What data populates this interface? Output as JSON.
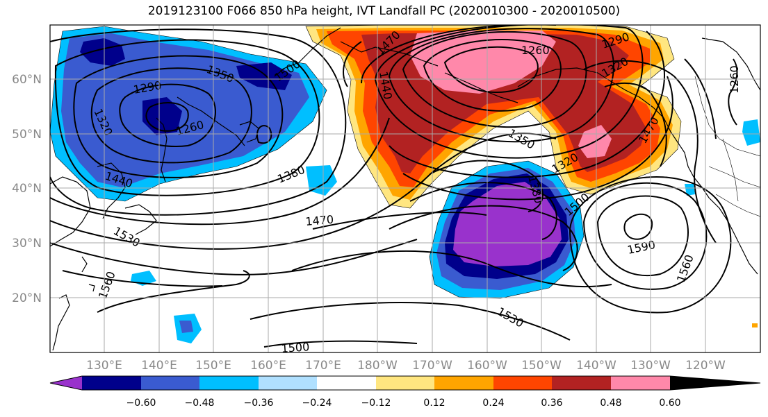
{
  "title": "2019123100 F066 850 hPa height, IVT Landfall PC (2020010300 - 2020010500)",
  "lat_labels": [
    "60°N",
    "50°N",
    "40°N",
    "30°N",
    "20°N"
  ],
  "lon_labels": [
    "130°E",
    "140°E",
    "150°E",
    "160°E",
    "170°E",
    "180°W",
    "170°W",
    "160°W",
    "150°W",
    "140°W",
    "130°W",
    "120°W"
  ],
  "colorbar": {
    "labels": [
      "−0.60",
      "−0.48",
      "−0.36",
      "−0.24",
      "−0.12",
      "0.12",
      "0.24",
      "0.36",
      "0.48",
      "0.60"
    ],
    "colors": [
      "#9932cc",
      "#00008b",
      "#3a5bd0",
      "#00bfff",
      "#b0e0ff",
      "#ffffff",
      "#ffe680",
      "#ffa500",
      "#ff4500",
      "#b22222",
      "#ff88aa"
    ]
  },
  "contour_labels": [
    "1350",
    "1290",
    "1260",
    "1320",
    "1440",
    "1380",
    "1470",
    "1530",
    "1560",
    "1500",
    "1470",
    "1440",
    "1260",
    "1290",
    "1320",
    "1350",
    "1320",
    "1380",
    "1500",
    "1470",
    "1590",
    "1560",
    "1530",
    "1500",
    "1260"
  ]
}
